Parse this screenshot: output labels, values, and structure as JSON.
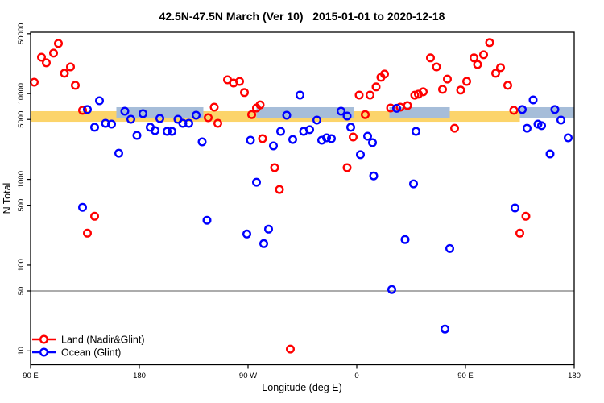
{
  "chart_data": {
    "type": "scatter",
    "title": "42.5N-47.5N March (Ver 10)   2015-01-01 to 2020-12-18",
    "xlabel": "Longitude (deg E)",
    "ylabel": "N Total",
    "x_axis": {
      "lim": [
        90,
        540
      ],
      "ticks": [
        {
          "value": 90,
          "label": "90 E"
        },
        {
          "value": 180,
          "label": "180"
        },
        {
          "value": 270,
          "label": "90 W"
        },
        {
          "value": 360,
          "label": "0"
        },
        {
          "value": 450,
          "label": "90 E"
        },
        {
          "value": 540,
          "label": "180"
        }
      ]
    },
    "y_axis": {
      "scale": "log",
      "lim": [
        6.9,
        52000
      ],
      "ticks": [
        {
          "value": 50000,
          "label": "50000"
        },
        {
          "value": 10000,
          "label": "10000"
        },
        {
          "value": 5000,
          "label": "5000"
        },
        {
          "value": 1000,
          "label": "1000"
        },
        {
          "value": 500,
          "label": "500"
        },
        {
          "value": 100,
          "label": "100"
        },
        {
          "value": 50,
          "label": "50"
        },
        {
          "value": 10,
          "label": "10"
        }
      ]
    },
    "reference_line": {
      "y": 50,
      "color": "#7a7a7a"
    },
    "bands": [
      {
        "name": "band-yellow",
        "color": "#fcd46a",
        "y_from": 4700,
        "y_to": 6240,
        "segments": [
          [
            90,
            495
          ]
        ]
      },
      {
        "name": "band-blue",
        "color": "#a6bdd9",
        "y_from": 5130,
        "y_to": 6950,
        "segments": [
          [
            161,
            233
          ],
          [
            277,
            358
          ],
          [
            387,
            437
          ],
          [
            495,
            540
          ]
        ]
      }
    ],
    "series": [
      {
        "name": "Land (Nadir&Glint)",
        "color": "#ff0000",
        "points": [
          [
            93,
            13600
          ],
          [
            99,
            26600
          ],
          [
            103,
            22900
          ],
          [
            109,
            29700
          ],
          [
            113,
            38500
          ],
          [
            118,
            17300
          ],
          [
            123,
            20500
          ],
          [
            127,
            12500
          ],
          [
            133,
            6380
          ],
          [
            137,
            236
          ],
          [
            143,
            372
          ],
          [
            237,
            5250
          ],
          [
            242,
            6950
          ],
          [
            245,
            4510
          ],
          [
            253,
            14500
          ],
          [
            258,
            13300
          ],
          [
            263,
            13900
          ],
          [
            267,
            10300
          ],
          [
            273,
            5700
          ],
          [
            277,
            6800
          ],
          [
            280,
            7400
          ],
          [
            282,
            2990
          ],
          [
            292,
            1370
          ],
          [
            296,
            762
          ],
          [
            305,
            10.5
          ],
          [
            352,
            1370
          ],
          [
            357,
            3120
          ],
          [
            362,
            9620
          ],
          [
            367,
            5700
          ],
          [
            371,
            9620
          ],
          [
            376,
            12000
          ],
          [
            380,
            15500
          ],
          [
            383,
            16900
          ],
          [
            388,
            6800
          ],
          [
            396,
            6950
          ],
          [
            402,
            7260
          ],
          [
            408,
            9600
          ],
          [
            411,
            9840
          ],
          [
            415,
            10500
          ],
          [
            421,
            26100
          ],
          [
            426,
            20500
          ],
          [
            431,
            11200
          ],
          [
            435,
            14800
          ],
          [
            441,
            3950
          ],
          [
            446,
            11000
          ],
          [
            451,
            13900
          ],
          [
            457,
            26100
          ],
          [
            460,
            21900
          ],
          [
            465,
            28400
          ],
          [
            470,
            39400
          ],
          [
            475,
            17300
          ],
          [
            479,
            20100
          ],
          [
            485,
            12500
          ],
          [
            490,
            6380
          ],
          [
            495,
            236
          ],
          [
            500,
            372
          ]
        ]
      },
      {
        "name": "Ocean (Glint)",
        "color": "#0000ff",
        "points": [
          [
            133,
            473
          ],
          [
            137,
            6520
          ],
          [
            143,
            4050
          ],
          [
            147,
            8270
          ],
          [
            152,
            4510
          ],
          [
            157,
            4410
          ],
          [
            163,
            2020
          ],
          [
            168,
            6240
          ],
          [
            173,
            5020
          ],
          [
            178,
            3260
          ],
          [
            183,
            5850
          ],
          [
            189,
            4050
          ],
          [
            193,
            3710
          ],
          [
            197,
            5130
          ],
          [
            203,
            3630
          ],
          [
            207,
            3630
          ],
          [
            212,
            5020
          ],
          [
            216,
            4510
          ],
          [
            221,
            4510
          ],
          [
            227,
            5600
          ],
          [
            232,
            2740
          ],
          [
            236,
            334
          ],
          [
            269,
            231
          ],
          [
            272,
            2860
          ],
          [
            277,
            927
          ],
          [
            283,
            178
          ],
          [
            287,
            263
          ],
          [
            291,
            2460
          ],
          [
            297,
            3630
          ],
          [
            302,
            5600
          ],
          [
            307,
            2920
          ],
          [
            313,
            9620
          ],
          [
            316,
            3630
          ],
          [
            321,
            3800
          ],
          [
            327,
            4910
          ],
          [
            331,
            2860
          ],
          [
            335,
            3050
          ],
          [
            339,
            2990
          ],
          [
            347,
            6240
          ],
          [
            352,
            5480
          ],
          [
            355,
            4050
          ],
          [
            363,
            1940
          ],
          [
            369,
            3190
          ],
          [
            373,
            2680
          ],
          [
            374,
            1100
          ],
          [
            389,
            52
          ],
          [
            393,
            6740
          ],
          [
            400,
            199
          ],
          [
            407,
            887
          ],
          [
            409,
            3630
          ],
          [
            433,
            18
          ],
          [
            437,
            156
          ],
          [
            491,
            465
          ],
          [
            497,
            6520
          ],
          [
            501,
            3950
          ],
          [
            506,
            8450
          ],
          [
            510,
            4410
          ],
          [
            513,
            4230
          ],
          [
            520,
            1980
          ],
          [
            524,
            6520
          ],
          [
            529,
            4910
          ],
          [
            535,
            3050
          ]
        ]
      }
    ],
    "legend": {
      "position": "bottom-left",
      "entries": [
        {
          "label": "Land (Nadir&Glint)",
          "color": "#ff0000"
        },
        {
          "label": "Ocean (Glint)",
          "color": "#0000ff"
        }
      ]
    }
  }
}
